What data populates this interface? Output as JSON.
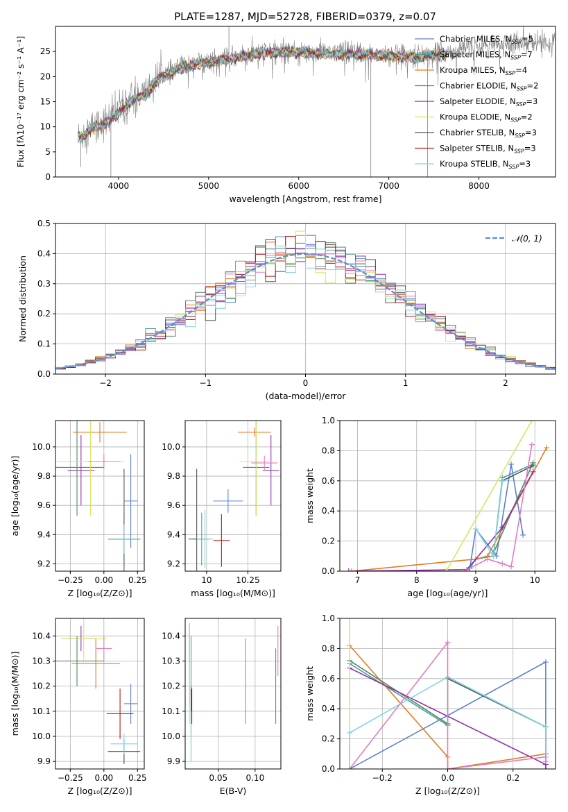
{
  "figure_title": "PLATE=1287, MJD=52728, FIBERID=0379, z=0.07",
  "colors": {
    "chabrier_miles": "#5b7fd6",
    "salpeter_miles": "#4f9e9e",
    "kroupa_miles": "#e07b22",
    "chabrier_elodie": "#4e8a5a",
    "salpeter_elodie": "#8e2fa8",
    "kroupa_elodie": "#d4e860",
    "chabrier_stelib": "#555555",
    "salpeter_stelib": "#b41818",
    "kroupa_stelib": "#7fd6e0",
    "pink": "#e37bbf",
    "gauss": "#5b8ad8",
    "data": "#808080"
  },
  "chart_data": [
    {
      "id": "spectrum",
      "type": "line",
      "title": "PLATE=1287, MJD=52728, FIBERID=0379, z=0.07",
      "xlabel": "wavelength [Angstrom, rest frame]",
      "ylabel": "Flux [fλ10⁻¹⁷ erg cm⁻² s⁻¹ A⁻¹]",
      "xlim": [
        3300,
        8850
      ],
      "ylim": [
        0,
        30
      ],
      "xticks": [
        4000,
        5000,
        6000,
        7000,
        8000
      ],
      "yticks": [
        0,
        5,
        10,
        15,
        20,
        25
      ],
      "grid": false,
      "legend_position": "top-right",
      "legend": [
        {
          "text": "Chabrier MILES, N",
          "sub": "SSP",
          "tail": "=5",
          "color": "chabrier_miles"
        },
        {
          "text": "Salpeter MILES, N",
          "sub": "SSP",
          "tail": "=7",
          "color": "salpeter_miles"
        },
        {
          "text": "Kroupa MILES, N",
          "sub": "SSP",
          "tail": "=4",
          "color": "kroupa_miles"
        },
        {
          "text": "Chabrier ELODIE, N",
          "sub": "SSP",
          "tail": "=2",
          "color": "chabrier_elodie"
        },
        {
          "text": "Salpeter ELODIE, N",
          "sub": "SSP",
          "tail": "=3",
          "color": "salpeter_elodie"
        },
        {
          "text": "Kroupa ELODIE, N",
          "sub": "SSP",
          "tail": "=2",
          "color": "kroupa_elodie"
        },
        {
          "text": "Chabrier STELIB, N",
          "sub": "SSP",
          "tail": "=3",
          "color": "chabrier_stelib"
        },
        {
          "text": "Salpeter STELIB, N",
          "sub": "SSP",
          "tail": "=3",
          "color": "salpeter_stelib"
        },
        {
          "text": "Kroupa STELIB, N",
          "sub": "SSP",
          "tail": "=3",
          "color": "kroupa_stelib"
        }
      ],
      "continuum": [
        [
          3550,
          8
        ],
        [
          3700,
          10
        ],
        [
          3850,
          11
        ],
        [
          4000,
          13
        ],
        [
          4100,
          15
        ],
        [
          4200,
          16
        ],
        [
          4300,
          17
        ],
        [
          4400,
          19
        ],
        [
          4500,
          20.5
        ],
        [
          4700,
          22
        ],
        [
          4900,
          23
        ],
        [
          5100,
          23.5
        ],
        [
          5300,
          24
        ],
        [
          5600,
          25
        ],
        [
          5900,
          25.3
        ],
        [
          6200,
          25
        ],
        [
          6500,
          24.8
        ],
        [
          6800,
          24.7
        ],
        [
          7000,
          24.5
        ],
        [
          7300,
          24.2
        ],
        [
          7600,
          24.8
        ],
        [
          8000,
          26
        ],
        [
          8400,
          26.8
        ],
        [
          8800,
          27
        ]
      ],
      "models_x_range": [
        3550,
        7650
      ],
      "spikes": [
        [
          3580,
          2
        ],
        [
          3915,
          0
        ],
        [
          5225,
          30
        ],
        [
          6800,
          0
        ],
        [
          7430,
          0
        ],
        [
          6720,
          23
        ]
      ]
    },
    {
      "id": "residuals",
      "type": "bar",
      "xlabel": "(data-model)/error",
      "ylabel": "Normed distribution",
      "xlim": [
        -2.5,
        2.5
      ],
      "ylim": [
        0,
        0.5
      ],
      "xticks": [
        -2,
        -1,
        0,
        1,
        2
      ],
      "yticks": [
        0.0,
        0.1,
        0.2,
        0.3,
        0.4,
        0.5
      ],
      "grid": true,
      "legend_position": "top-right",
      "legend": [
        {
          "text": "𝒩(0, 1)",
          "color": "gauss"
        }
      ],
      "bin_width": 0.1
    },
    {
      "id": "age_vs_Z",
      "type": "scatter",
      "xlabel": "Z [log₁₀(Z/Z⊙)]",
      "ylabel": "age  [log₁₀(age/yr)]",
      "xlim": [
        -0.36,
        0.3
      ],
      "ylim": [
        9.15,
        10.18
      ],
      "xticks": [
        -0.25,
        0.0,
        0.25
      ],
      "xticklabels": [
        "−0.25",
        "0.00",
        "0.25"
      ],
      "yticks": [
        9.2,
        9.4,
        9.6,
        9.8,
        10.0
      ],
      "grid": true,
      "points": [
        {
          "x": 0.2,
          "y": 9.63,
          "xerr": 0.05,
          "yerr": 0.32,
          "color": "chabrier_miles"
        },
        {
          "x": 0.15,
          "y": 9.37,
          "xerr": 0.12,
          "yerr": 0.18,
          "color": "salpeter_miles"
        },
        {
          "x": -0.03,
          "y": 10.1,
          "xerr": 0.2,
          "yerr": 0.07,
          "color": "kroupa_miles"
        },
        {
          "x": -0.2,
          "y": 9.86,
          "xerr": 0.2,
          "yerr": 0.33,
          "color": "chabrier_elodie"
        },
        {
          "x": -0.17,
          "y": 9.84,
          "xerr": 0.1,
          "yerr": 0.24,
          "color": "salpeter_elodie"
        },
        {
          "x": -0.1,
          "y": 9.9,
          "xerr": 0.25,
          "yerr": 0.37,
          "color": "kroupa_elodie"
        },
        {
          "x": 0.15,
          "y": 9.37,
          "xerr": 0.12,
          "yerr": 0.48,
          "color": "chabrier_stelib"
        },
        {
          "x": 0.15,
          "y": 9.37,
          "xerr": 0.12,
          "yerr": 0.1,
          "color": "salpeter_stelib"
        },
        {
          "x": 0.15,
          "y": 9.37,
          "xerr": 0.12,
          "yerr": 0.1,
          "color": "kroupa_stelib"
        },
        {
          "x": 0.0,
          "y": 9.9,
          "xerr": 0.12,
          "yerr": 0.05,
          "color": "pink"
        }
      ]
    },
    {
      "id": "age_vs_mass",
      "type": "scatter",
      "xlabel": "mass [log₁₀(M/M⊙)]",
      "ylabel": "",
      "xlim": [
        9.87,
        10.45
      ],
      "ylim": [
        9.15,
        10.18
      ],
      "xticks": [
        10.0,
        10.25
      ],
      "xticklabels": [
        "10",
        "10.25"
      ],
      "yticks": [
        9.2,
        9.4,
        9.6,
        9.8,
        10.0
      ],
      "grid": true,
      "points": [
        {
          "x": 10.13,
          "y": 9.63,
          "xerr": 0.09,
          "yerr": 0.08,
          "color": "chabrier_miles"
        },
        {
          "x": 9.97,
          "y": 9.37,
          "xerr": 0.05,
          "yerr": 0.18,
          "color": "salpeter_miles"
        },
        {
          "x": 10.29,
          "y": 10.1,
          "xerr": 0.1,
          "yerr": 0.03,
          "color": "kroupa_miles"
        },
        {
          "x": 10.3,
          "y": 9.86,
          "xerr": 0.08,
          "yerr": 0.33,
          "color": "chabrier_elodie"
        },
        {
          "x": 10.39,
          "y": 9.84,
          "xerr": 0.05,
          "yerr": 0.24,
          "color": "salpeter_elodie"
        },
        {
          "x": 10.3,
          "y": 9.9,
          "xerr": 0.1,
          "yerr": 0.37,
          "color": "kroupa_elodie"
        },
        {
          "x": 9.94,
          "y": 9.37,
          "xerr": 0.05,
          "yerr": 0.48,
          "color": "chabrier_stelib"
        },
        {
          "x": 10.09,
          "y": 9.36,
          "xerr": 0.05,
          "yerr": 0.18,
          "color": "salpeter_stelib"
        },
        {
          "x": 9.99,
          "y": 9.37,
          "xerr": 0.05,
          "yerr": 0.2,
          "color": "kroupa_stelib"
        },
        {
          "x": 10.35,
          "y": 9.89,
          "xerr": 0.08,
          "yerr": 0.05,
          "color": "pink"
        }
      ]
    },
    {
      "id": "mass_weight_vs_age",
      "type": "line",
      "xlabel": "age  [log₁₀(age/yr)]",
      "ylabel": "mass weight",
      "xlim": [
        6.7,
        10.35
      ],
      "ylim": [
        0,
        1
      ],
      "xticks": [
        7,
        8,
        9,
        10
      ],
      "yticks": [
        0.0,
        0.2,
        0.4,
        0.6,
        0.8,
        1.0
      ],
      "grid": true,
      "series": [
        {
          "color": "chabrier_miles",
          "x": [
            8.9,
            9.0,
            9.35,
            9.6,
            9.8
          ],
          "y": [
            0.02,
            0.28,
            0.1,
            0.71,
            0.24
          ]
        },
        {
          "color": "salpeter_miles",
          "x": [
            8.9,
            9.0,
            9.3,
            9.45,
            9.97
          ],
          "y": [
            0.02,
            0.08,
            0.1,
            0.62,
            0.71
          ]
        },
        {
          "color": "kroupa_miles",
          "x": [
            6.9,
            9.0,
            9.2,
            10.2
          ],
          "y": [
            0.0,
            0.08,
            0.1,
            0.82
          ]
        },
        {
          "color": "chabrier_elodie",
          "x": [
            9.3,
            9.97
          ],
          "y": [
            0.12,
            0.72
          ]
        },
        {
          "color": "salpeter_elodie",
          "x": [
            6.85,
            8.85,
            9.45,
            9.97
          ],
          "y": [
            0.0,
            0.01,
            0.29,
            0.66
          ]
        },
        {
          "color": "kroupa_elodie",
          "x": [
            8.5,
            9.95
          ],
          "y": [
            0.0,
            1.0
          ]
        },
        {
          "color": "chabrier_stelib",
          "x": [
            9.3,
            9.45,
            9.97
          ],
          "y": [
            0.1,
            0.6,
            0.7
          ]
        },
        {
          "color": "kroupa_stelib",
          "x": [
            9.0,
            9.3,
            9.45
          ],
          "y": [
            0.28,
            0.1,
            0.6
          ]
        },
        {
          "color": "pink",
          "x": [
            8.8,
            9.2,
            9.45,
            9.6,
            9.95
          ],
          "y": [
            0.0,
            0.08,
            0.05,
            0.03,
            0.84
          ]
        }
      ]
    },
    {
      "id": "mass_vs_Z",
      "type": "scatter",
      "xlabel": "Z [log₁₀(Z/Z⊙)]",
      "ylabel": "mass [log₁₀(M/M⊙)]",
      "xlim": [
        -0.36,
        0.3
      ],
      "ylim": [
        9.87,
        10.47
      ],
      "xticks": [
        -0.25,
        0.0,
        0.25
      ],
      "xticklabels": [
        "−0.25",
        "0.00",
        "0.25"
      ],
      "yticks": [
        9.9,
        10.0,
        10.1,
        10.2,
        10.3,
        10.4
      ],
      "grid": true,
      "points": [
        {
          "x": 0.2,
          "y": 10.13,
          "xerr": 0.05,
          "yerr": 0.08,
          "color": "chabrier_miles"
        },
        {
          "x": 0.15,
          "y": 9.94,
          "xerr": 0.12,
          "yerr": 0.05,
          "color": "salpeter_miles"
        },
        {
          "x": -0.06,
          "y": 10.29,
          "xerr": 0.18,
          "yerr": 0.1,
          "color": "kroupa_miles"
        },
        {
          "x": -0.2,
          "y": 10.3,
          "xerr": 0.2,
          "yerr": 0.1,
          "color": "chabrier_elodie"
        },
        {
          "x": -0.17,
          "y": 10.39,
          "xerr": 0.1,
          "yerr": 0.05,
          "color": "salpeter_elodie"
        },
        {
          "x": -0.15,
          "y": 10.39,
          "xerr": 0.17,
          "yerr": 0.1,
          "color": "kroupa_elodie"
        },
        {
          "x": 0.15,
          "y": 9.94,
          "xerr": 0.12,
          "yerr": 0.05,
          "color": "chabrier_stelib"
        },
        {
          "x": 0.12,
          "y": 10.09,
          "xerr": 0.1,
          "yerr": 0.1,
          "color": "salpeter_stelib"
        },
        {
          "x": 0.15,
          "y": 9.97,
          "xerr": 0.1,
          "yerr": 0.04,
          "color": "kroupa_stelib"
        },
        {
          "x": 0.0,
          "y": 10.35,
          "xerr": 0.06,
          "yerr": 0.05,
          "color": "pink"
        }
      ]
    },
    {
      "id": "mass_vs_ebv",
      "type": "scatter",
      "xlabel": "E(B-V)",
      "ylabel": "",
      "xlim": [
        0.005,
        0.135
      ],
      "ylim": [
        9.87,
        10.47
      ],
      "xticks": [
        0.05,
        0.1
      ],
      "xticklabels": [
        "0.05",
        "0.10"
      ],
      "yticks": [
        9.9,
        10.0,
        10.1,
        10.2,
        10.3,
        10.4
      ],
      "grid": true,
      "points": [
        {
          "x": 0.128,
          "y": 10.2,
          "xerr": 0,
          "yerr": 0.15,
          "color": "chabrier_miles"
        },
        {
          "x": 0.013,
          "y": 10.2,
          "xerr": 0,
          "yerr": 0.2,
          "color": "salpeter_miles"
        },
        {
          "x": 0.087,
          "y": 10.22,
          "xerr": 0,
          "yerr": 0.17,
          "color": "kroupa_miles"
        },
        {
          "x": 0.011,
          "y": 10.28,
          "xerr": 0,
          "yerr": 0.15,
          "color": "chabrier_elodie"
        },
        {
          "x": 0.011,
          "y": 10.37,
          "xerr": 0,
          "yerr": 0.08,
          "color": "salpeter_elodie"
        },
        {
          "x": 0.011,
          "y": 10.25,
          "xerr": 0,
          "yerr": 0.2,
          "color": "kroupa_elodie"
        },
        {
          "x": 0.013,
          "y": 10.05,
          "xerr": 0,
          "yerr": 0.15,
          "color": "chabrier_stelib"
        },
        {
          "x": 0.014,
          "y": 10.12,
          "xerr": 0,
          "yerr": 0.07,
          "color": "salpeter_stelib"
        },
        {
          "x": 0.013,
          "y": 10.0,
          "xerr": 0,
          "yerr": 0.1,
          "color": "kroupa_stelib"
        },
        {
          "x": 0.131,
          "y": 10.34,
          "xerr": 0,
          "yerr": 0.1,
          "color": "pink"
        }
      ]
    },
    {
      "id": "mass_weight_vs_Z",
      "type": "line",
      "xlabel": "Z [log₁₀(Z/Z⊙)]",
      "ylabel": "mass weight",
      "xlim": [
        -0.33,
        0.33
      ],
      "ylim": [
        0,
        1
      ],
      "xticks": [
        -0.2,
        0.0,
        0.2
      ],
      "xticklabels": [
        "−0.2",
        "0.0",
        "0.2"
      ],
      "yticks": [
        0.0,
        0.2,
        0.4,
        0.6,
        0.8,
        1.0
      ],
      "grid": true,
      "series": [
        {
          "color": "chabrier_miles",
          "x": [
            -0.3,
            0.3,
            0.3
          ],
          "y": [
            0.0,
            0.71,
            0.0
          ]
        },
        {
          "color": "salpeter_miles",
          "x": [
            -0.3,
            0.0,
            0.0,
            0.3,
            0.3
          ],
          "y": [
            0.7,
            0.29,
            0.61,
            0.28,
            0.1
          ]
        },
        {
          "color": "kroupa_miles",
          "x": [
            -0.3,
            0.0,
            0.0,
            0.3
          ],
          "y": [
            0.82,
            0.08,
            0.0,
            0.1
          ]
        },
        {
          "color": "chabrier_elodie",
          "x": [
            -0.3,
            0.0
          ],
          "y": [
            0.72,
            0.3
          ]
        },
        {
          "color": "salpeter_elodie",
          "x": [
            -0.3,
            0.3,
            0.3
          ],
          "y": [
            0.67,
            0.03,
            0.0
          ]
        },
        {
          "color": "kroupa_elodie",
          "x": [
            -0.3,
            -0.3
          ],
          "y": [
            0.0,
            1.0
          ]
        },
        {
          "color": "chabrier_stelib",
          "x": [
            0.0,
            0.3,
            0.3
          ],
          "y": [
            0.6,
            0.28,
            0.1
          ]
        },
        {
          "color": "kroupa_stelib",
          "x": [
            -0.3,
            -0.3,
            0.0,
            0.3,
            0.3
          ],
          "y": [
            0.0,
            0.24,
            0.61,
            0.28,
            0.1
          ]
        },
        {
          "color": "pink",
          "x": [
            -0.3,
            0.0,
            0.0,
            0.3,
            0.3
          ],
          "y": [
            0.0,
            0.84,
            0.0,
            0.08,
            0.05
          ]
        }
      ]
    }
  ]
}
